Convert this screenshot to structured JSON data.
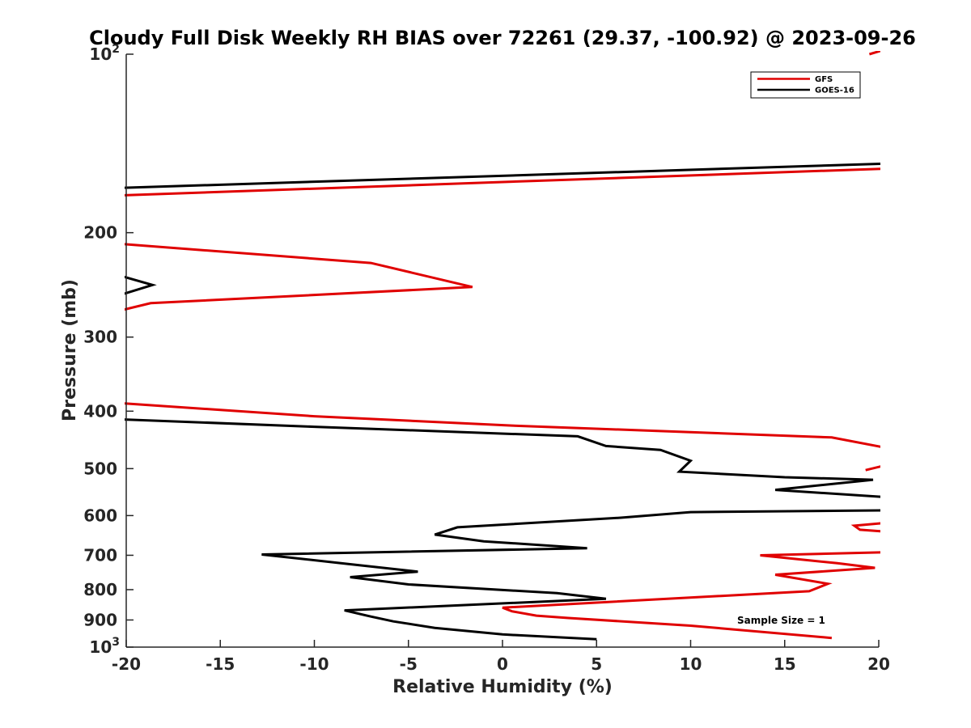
{
  "chart_data": {
    "type": "line",
    "title": "Cloudy Full Disk Weekly RH BIAS over 72261 (29.37, -100.92) @ 2023-09-26",
    "xlabel": "Relative Humidity (%)",
    "ylabel": "Pressure (mb)",
    "xlim": [
      -20,
      20
    ],
    "ylim": [
      100,
      1000
    ],
    "yscale": "log",
    "y_reversed": true,
    "xticks": [
      -20,
      -15,
      -10,
      -5,
      0,
      5,
      10,
      15,
      20
    ],
    "xtick_labels": [
      "-20",
      "-15",
      "-10",
      "-5",
      "0",
      "5",
      "10",
      "15",
      "20"
    ],
    "yticks": [
      200,
      300,
      400,
      500,
      600,
      700,
      800,
      900
    ],
    "ytick_labels": [
      "200",
      "300",
      "400",
      "500",
      "600",
      "700",
      "800",
      "900"
    ],
    "ytick_power_top": {
      "base": "10",
      "exp": "2"
    },
    "ytick_power_bottom": {
      "base": "10",
      "exp": "3"
    },
    "legend_position": "top-right",
    "annotation": "Sample Size = 1",
    "series": [
      {
        "name": "GFS",
        "color": "#e00000",
        "segments": [
          {
            "x": [
              19.5,
              20.2
            ],
            "y": [
              100,
              98.5
            ]
          },
          {
            "x": [
              20.2,
              -20.2
            ],
            "y": [
              156,
              173
            ]
          },
          {
            "x": [
              -20.2,
              -7.0,
              -1.6,
              -18.7,
              -20.2
            ],
            "y": [
              209,
              225,
              247,
              263,
              270
            ]
          },
          {
            "x": [
              -20.2,
              -10.0,
              0.5,
              17.5,
              20.2
            ],
            "y": [
              388,
              408,
              423,
              443,
              460
            ]
          },
          {
            "x": [
              20.2,
              19.3
            ],
            "y": [
              495,
              503
            ]
          },
          {
            "x": [
              20.2,
              18.7,
              19.0,
              20.2
            ],
            "y": [
              618,
              624,
              634,
              638
            ]
          },
          {
            "x": [
              20.2,
              13.7,
              17.8,
              19.8,
              14.5,
              17.3,
              16.3,
              0.0,
              0.5,
              1.8,
              3.5,
              10.0,
              17.5
            ],
            "y": [
              692,
              700,
              722,
              735,
              755,
              782,
              805,
              858,
              870,
              885,
              893,
              920,
              965
            ]
          }
        ]
      },
      {
        "name": "GOES-16",
        "color": "#000000",
        "segments": [
          {
            "x": [
              20.2,
              -20.2
            ],
            "y": [
              153,
              168
            ]
          },
          {
            "x": [
              -20.2,
              -18.6,
              -20.2
            ],
            "y": [
              237,
              245,
              254
            ]
          },
          {
            "x": [
              -20.2,
              -10.0,
              4.0,
              5.5,
              8.4,
              10.0,
              9.4,
              15.0,
              19.7,
              14.5,
              20.2
            ],
            "y": [
              413,
              425,
              441,
              458,
              465,
              485,
              506,
              517,
              522,
              543,
              558
            ]
          },
          {
            "x": [
              20.2,
              10.0,
              6.3,
              -2.4,
              -3.6,
              -1.0,
              4.5,
              -12.8,
              -8.2,
              -4.5,
              -8.1,
              -5.0,
              2.9,
              5.5,
              -8.4,
              -7.0,
              -5.8,
              -3.6,
              0.0,
              5.0
            ],
            "y": [
              588,
              592,
              605,
              628,
              646,
              663,
              681,
              698,
              724,
              746,
              762,
              784,
              811,
              829,
              867,
              888,
              905,
              928,
              952,
              970
            ]
          }
        ]
      }
    ]
  }
}
